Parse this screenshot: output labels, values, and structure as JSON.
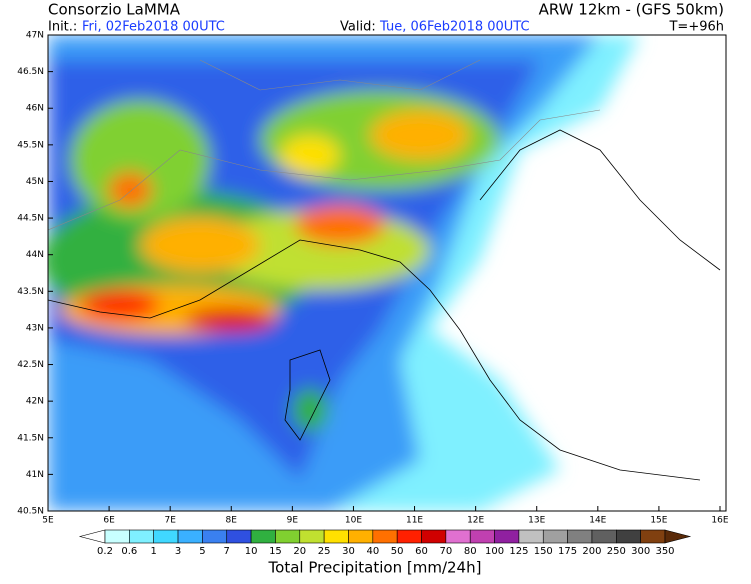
{
  "header": {
    "left_title": "Consorzio LaMMA",
    "right_title": "ARW 12km - (GFS 50km)",
    "init_label": "Init.:",
    "init_value": "Fri, 02Feb2018 00UTC",
    "valid_label": "Valid:",
    "valid_value": "Tue, 06Feb2018 00UTC",
    "lead_time": "T=+96h"
  },
  "map": {
    "lat_labels": [
      "47N",
      "46.5N",
      "46N",
      "45.5N",
      "45N",
      "44.5N",
      "44N",
      "43.5N",
      "43N",
      "42.5N",
      "42N",
      "41.5N",
      "41N",
      "40.5N"
    ],
    "lon_labels": [
      "5E",
      "6E",
      "7E",
      "8E",
      "9E",
      "10E",
      "11E",
      "12E",
      "13E",
      "14E",
      "15E",
      "16E"
    ]
  },
  "legend": {
    "labels": [
      0.2,
      0.6,
      1,
      3,
      5,
      7,
      10,
      15,
      20,
      25,
      30,
      40,
      50,
      60,
      70,
      80,
      100,
      125,
      150,
      175,
      200,
      250,
      300,
      350
    ],
    "title": "Total Precipitation [mm/24h]"
  }
}
